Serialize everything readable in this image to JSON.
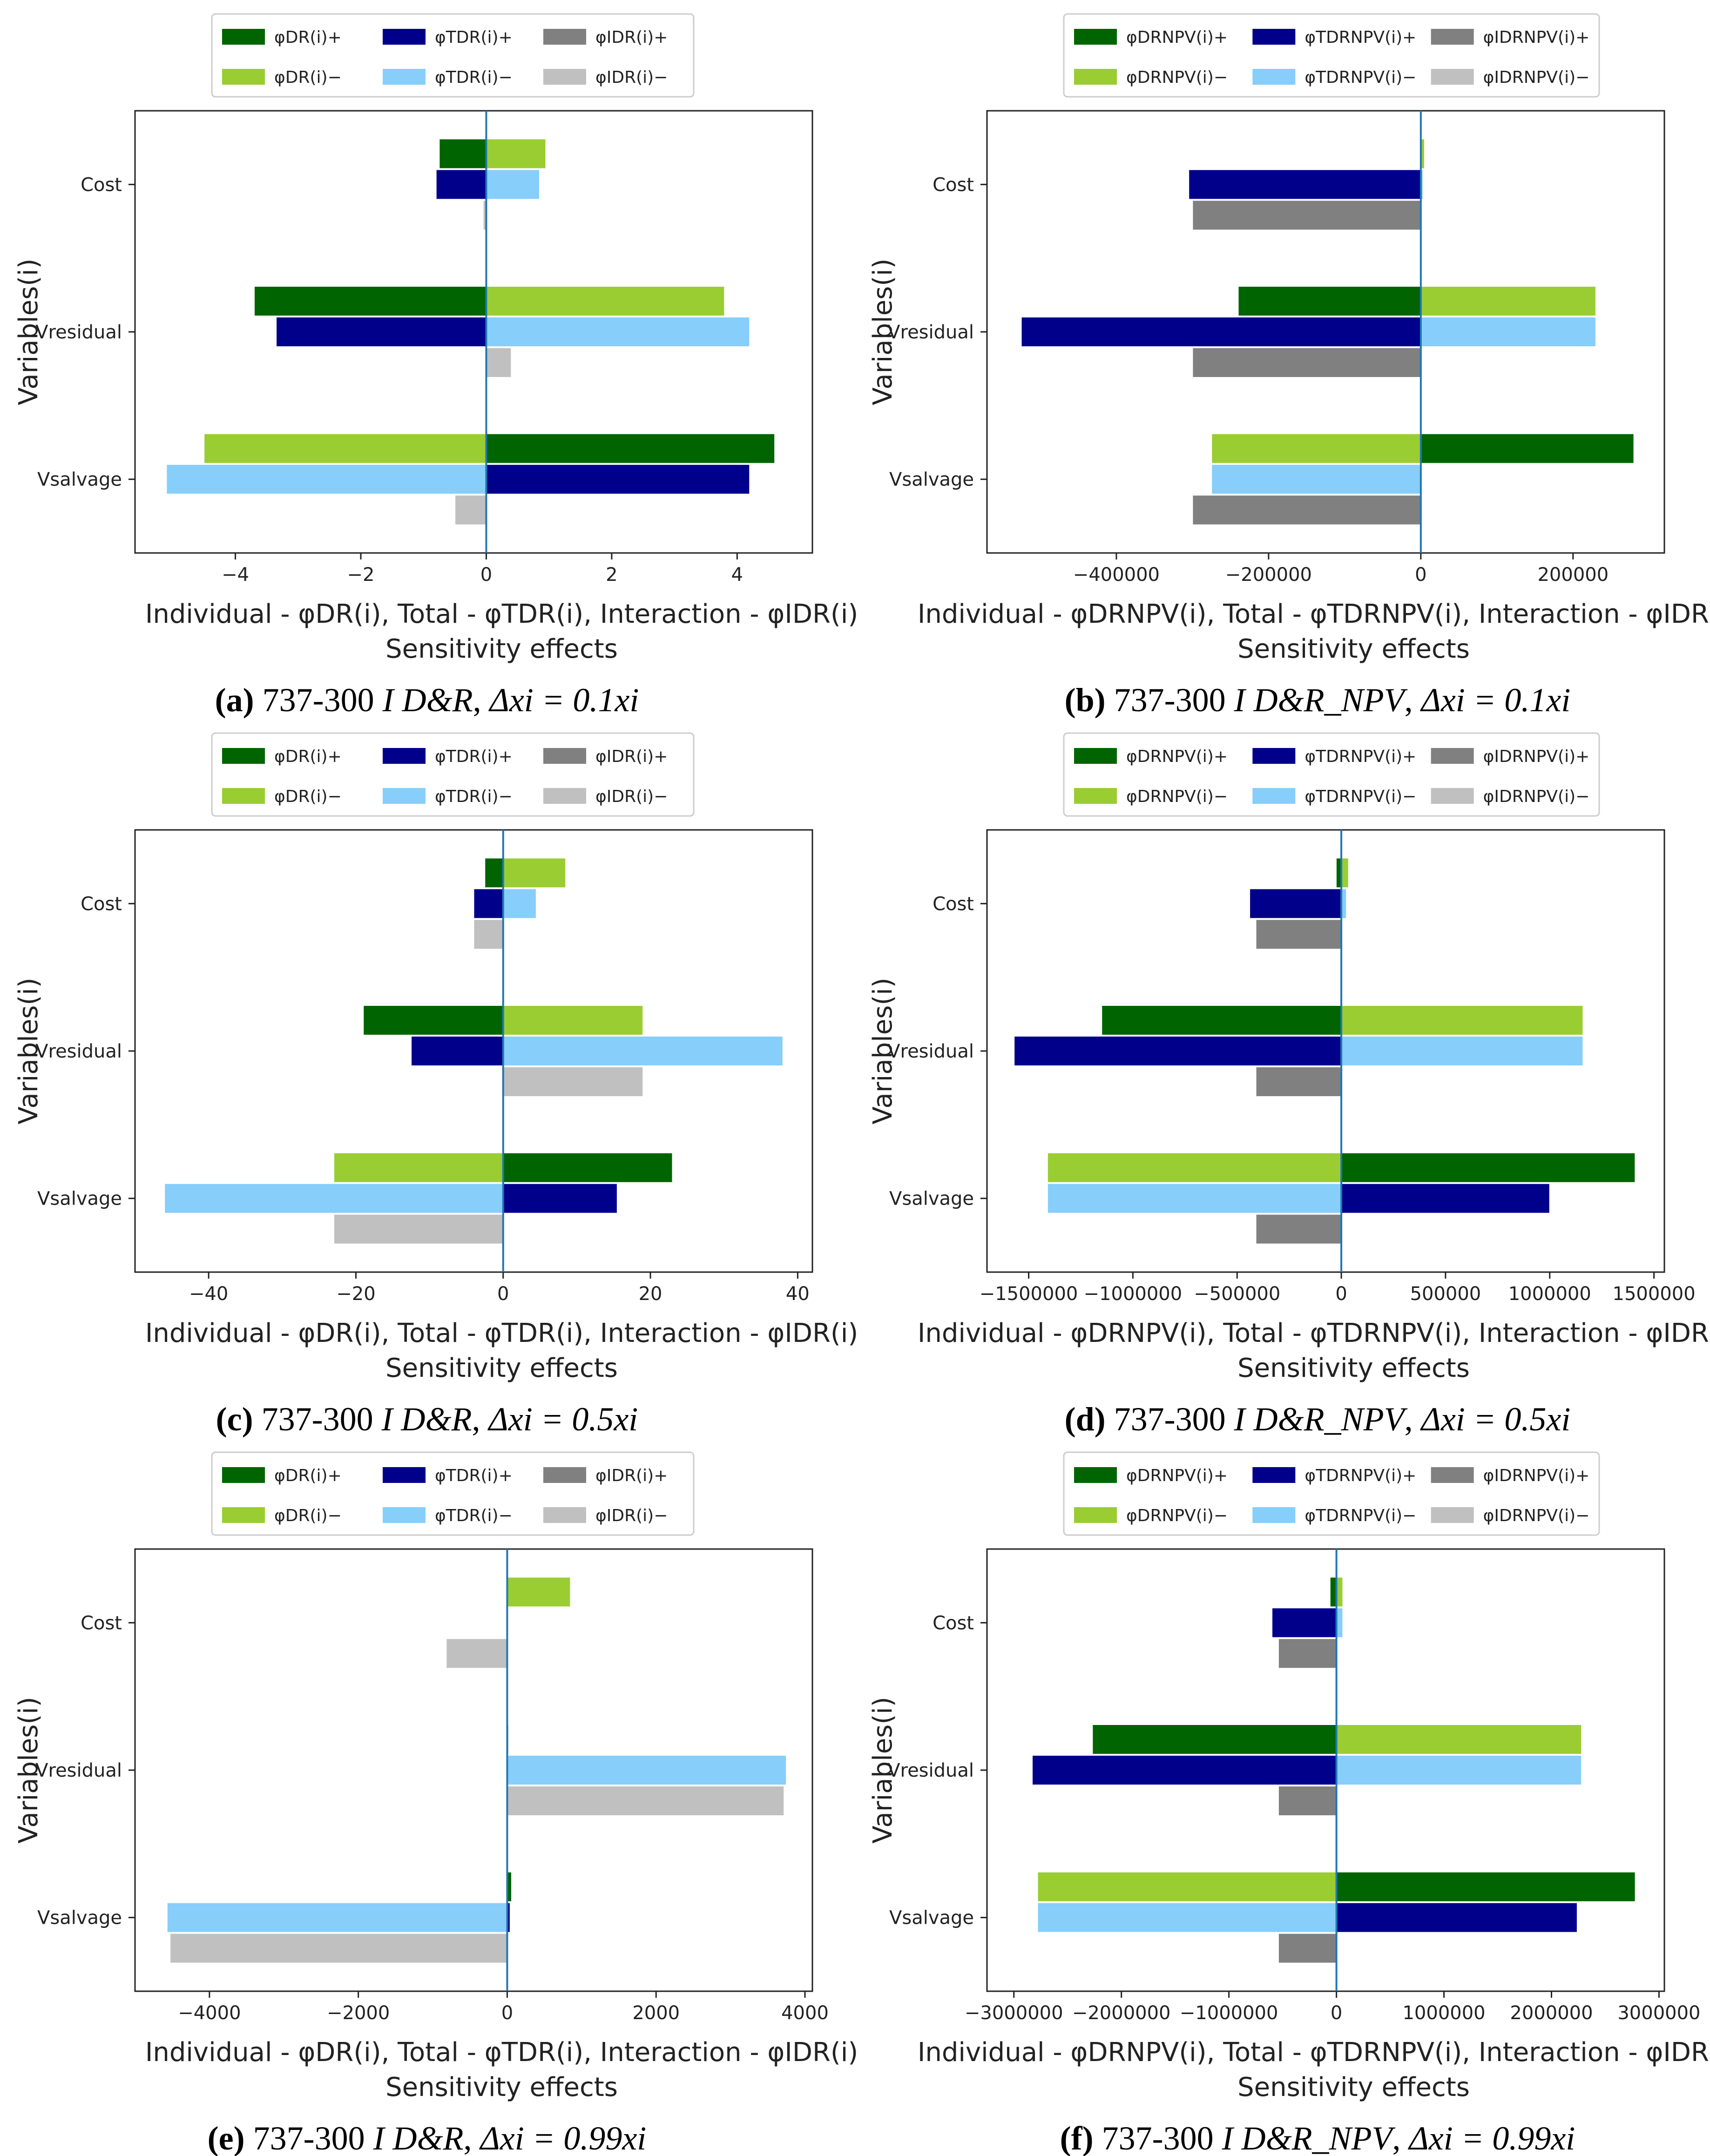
{
  "figure": {
    "palette": {
      "individual_plus": "#006400",
      "individual_minus": "#9ACD32",
      "total_plus": "#00008B",
      "total_minus": "#87CEFA",
      "interaction_plus": "#808080",
      "interaction_minus": "#C0C0C0",
      "zero_line": "#1f77b4"
    }
  },
  "chart_data": [
    {
      "id": "a",
      "type": "bar",
      "orientation": "horizontal",
      "caption": {
        "label": "(a)",
        "text": "737-300",
        "metric": "I D&R",
        "step": "Δxi = 0.1xi"
      },
      "legend_labels": [
        "φDR(i)+",
        "φDR(i)−",
        "φTDR(i)+",
        "φTDR(i)−",
        "φIDR(i)+",
        "φIDR(i)−"
      ],
      "categories": [
        "Cost",
        "Vresidual",
        "Vsalvage"
      ],
      "series": [
        {
          "name": "φDR(i)+",
          "values": [
            -0.75,
            -3.7,
            4.6
          ]
        },
        {
          "name": "φDR(i)−",
          "values": [
            0.95,
            3.8,
            -4.5
          ]
        },
        {
          "name": "φTDR(i)+",
          "values": [
            -0.8,
            -3.35,
            4.2
          ]
        },
        {
          "name": "φTDR(i)−",
          "values": [
            0.85,
            4.2,
            -5.1
          ]
        },
        {
          "name": "φIDR(i)+",
          "values": [
            0,
            0,
            0
          ]
        },
        {
          "name": "φIDR(i)−",
          "values": [
            -0.05,
            0.4,
            -0.5
          ]
        }
      ],
      "xlim": [
        -5.6,
        5.2
      ],
      "xticks": [
        -4,
        -2,
        0,
        2,
        4
      ],
      "xtick_labels": [
        "−4",
        "−2",
        "0",
        "2",
        "4"
      ],
      "xlabel": "Individual - φDR(i), Total - φTDR(i), Interaction - φIDR(i)",
      "xlabel2": "Sensitivity effects",
      "ylabel": "Variables(i)"
    },
    {
      "id": "b",
      "type": "bar",
      "orientation": "horizontal",
      "caption": {
        "label": "(b)",
        "text": "737-300",
        "metric": "I D&R_NPV",
        "step": "Δxi = 0.1xi"
      },
      "legend_labels": [
        "φDRNPV(i)+",
        "φDRNPV(i)−",
        "φTDRNPV(i)+",
        "φTDRNPV(i)−",
        "φIDRNPV(i)+",
        "φIDRNPV(i)−"
      ],
      "categories": [
        "Cost",
        "Vresidual",
        "Vsalvage"
      ],
      "series": [
        {
          "name": "φDRNPV(i)+",
          "values": [
            0,
            -240000,
            280000
          ]
        },
        {
          "name": "φDRNPV(i)−",
          "values": [
            5000,
            230000,
            -275000
          ]
        },
        {
          "name": "φTDRNPV(i)+",
          "values": [
            -305000,
            -525000,
            0
          ]
        },
        {
          "name": "φTDRNPV(i)−",
          "values": [
            3000,
            230000,
            -275000
          ]
        },
        {
          "name": "φIDRNPV(i)+",
          "values": [
            -300000,
            -300000,
            -300000
          ]
        },
        {
          "name": "φIDRNPV(i)−",
          "values": [
            0,
            0,
            0
          ]
        }
      ],
      "xlim": [
        -570000,
        320000
      ],
      "xticks": [
        -400000,
        -200000,
        0,
        200000
      ],
      "xtick_labels": [
        "−400000",
        "−200000",
        "0",
        "200000"
      ],
      "xlabel": "Individual - φDRNPV(i), Total - φTDRNPV(i), Interaction - φIDRNPV(i)",
      "xlabel2": "Sensitivity effects",
      "ylabel": "Variables(i)"
    },
    {
      "id": "c",
      "type": "bar",
      "orientation": "horizontal",
      "caption": {
        "label": "(c)",
        "text": "737-300",
        "metric": "I D&R",
        "step": "Δxi = 0.5xi"
      },
      "legend_labels": [
        "φDR(i)+",
        "φDR(i)−",
        "φTDR(i)+",
        "φTDR(i)−",
        "φIDR(i)+",
        "φIDR(i)−"
      ],
      "categories": [
        "Cost",
        "Vresidual",
        "Vsalvage"
      ],
      "series": [
        {
          "name": "φDR(i)+",
          "values": [
            -2.5,
            -19,
            23
          ]
        },
        {
          "name": "φDR(i)−",
          "values": [
            8.5,
            19,
            -23
          ]
        },
        {
          "name": "φTDR(i)+",
          "values": [
            -4,
            -12.5,
            15.5
          ]
        },
        {
          "name": "φTDR(i)−",
          "values": [
            4.5,
            38,
            -46
          ]
        },
        {
          "name": "φIDR(i)+",
          "values": [
            0,
            0,
            0
          ]
        },
        {
          "name": "φIDR(i)−",
          "values": [
            -4,
            19,
            -23
          ]
        }
      ],
      "xlim": [
        -50,
        42
      ],
      "xticks": [
        -40,
        -20,
        0,
        20,
        40
      ],
      "xtick_labels": [
        "−40",
        "−20",
        "0",
        "20",
        "40"
      ],
      "xlabel": "Individual - φDR(i), Total - φTDR(i), Interaction - φIDR(i)",
      "xlabel2": "Sensitivity effects",
      "ylabel": "Variables(i)"
    },
    {
      "id": "d",
      "type": "bar",
      "orientation": "horizontal",
      "caption": {
        "label": "(d)",
        "text": "737-300",
        "metric": "I D&R_NPV",
        "step": "Δxi = 0.5xi"
      },
      "legend_labels": [
        "φDRNPV(i)+",
        "φDRNPV(i)−",
        "φTDRNPV(i)+",
        "φTDRNPV(i)−",
        "φIDRNPV(i)+",
        "φIDRNPV(i)−"
      ],
      "categories": [
        "Cost",
        "Vresidual",
        "Vsalvage"
      ],
      "series": [
        {
          "name": "φDRNPV(i)+",
          "values": [
            -25000,
            -1150000,
            1410000
          ]
        },
        {
          "name": "φDRNPV(i)−",
          "values": [
            35000,
            1160000,
            -1410000
          ]
        },
        {
          "name": "φTDRNPV(i)+",
          "values": [
            -440000,
            -1570000,
            1000000
          ]
        },
        {
          "name": "φTDRNPV(i)−",
          "values": [
            25000,
            1160000,
            -1410000
          ]
        },
        {
          "name": "φIDRNPV(i)+",
          "values": [
            -410000,
            -410000,
            -410000
          ]
        },
        {
          "name": "φIDRNPV(i)−",
          "values": [
            0,
            0,
            0
          ]
        }
      ],
      "xlim": [
        -1700000,
        1550000
      ],
      "xticks": [
        -1500000,
        -1000000,
        -500000,
        0,
        500000,
        1000000,
        1500000
      ],
      "xtick_labels": [
        "−1500000",
        "−1000000",
        "−500000",
        "0",
        "500000",
        "1000000",
        "1500000"
      ],
      "xlabel": "Individual - φDRNPV(i), Total - φTDRNPV(i), Interaction - φIDRNPV(i)",
      "xlabel2": "Sensitivity effects",
      "ylabel": "Variables(i)"
    },
    {
      "id": "e",
      "type": "bar",
      "orientation": "horizontal",
      "caption": {
        "label": "(e)",
        "text": "737-300",
        "metric": "I D&R",
        "step": "Δxi = 0.99xi"
      },
      "legend_labels": [
        "φDR(i)+",
        "φDR(i)−",
        "φTDR(i)+",
        "φTDR(i)−",
        "φIDR(i)+",
        "φIDR(i)−"
      ],
      "categories": [
        "Cost",
        "Vresidual",
        "Vsalvage"
      ],
      "series": [
        {
          "name": "φDR(i)+",
          "values": [
            0,
            20,
            60
          ]
        },
        {
          "name": "φDR(i)−",
          "values": [
            850,
            0,
            0
          ]
        },
        {
          "name": "φTDR(i)+",
          "values": [
            0,
            0,
            40
          ]
        },
        {
          "name": "φTDR(i)−",
          "values": [
            0,
            3750,
            -4570
          ]
        },
        {
          "name": "φIDR(i)+",
          "values": [
            0,
            0,
            0
          ]
        },
        {
          "name": "φIDR(i)−",
          "values": [
            -820,
            3720,
            -4530
          ]
        }
      ],
      "xlim": [
        -5000,
        4100
      ],
      "xticks": [
        -4000,
        -2000,
        0,
        2000,
        4000
      ],
      "xtick_labels": [
        "−4000",
        "−2000",
        "0",
        "2000",
        "4000"
      ],
      "xlabel": "Individual - φDR(i), Total - φTDR(i), Interaction - φIDR(i)",
      "xlabel2": "Sensitivity effects",
      "ylabel": "Variables(i)"
    },
    {
      "id": "f",
      "type": "bar",
      "orientation": "horizontal",
      "caption": {
        "label": "(f)",
        "text": "737-300",
        "metric": "I D&R_NPV",
        "step": "Δxi = 0.99xi"
      },
      "legend_labels": [
        "φDRNPV(i)+",
        "φDRNPV(i)−",
        "φTDRNPV(i)+",
        "φTDRNPV(i)−",
        "φIDRNPV(i)+",
        "φIDRNPV(i)−"
      ],
      "categories": [
        "Cost",
        "Vresidual",
        "Vsalvage"
      ],
      "series": [
        {
          "name": "φDRNPV(i)+",
          "values": [
            -60000,
            -2270000,
            2780000
          ]
        },
        {
          "name": "φDRNPV(i)−",
          "values": [
            60000,
            2280000,
            -2780000
          ]
        },
        {
          "name": "φTDRNPV(i)+",
          "values": [
            -600000,
            -2830000,
            2240000
          ]
        },
        {
          "name": "φTDRNPV(i)−",
          "values": [
            60000,
            2280000,
            -2780000
          ]
        },
        {
          "name": "φIDRNPV(i)+",
          "values": [
            -540000,
            -540000,
            -540000
          ]
        },
        {
          "name": "φIDRNPV(i)−",
          "values": [
            0,
            0,
            0
          ]
        }
      ],
      "xlim": [
        -3250000,
        3050000
      ],
      "xticks": [
        -3000000,
        -2000000,
        -1000000,
        0,
        1000000,
        2000000,
        3000000
      ],
      "xtick_labels": [
        "−3000000",
        "−2000000",
        "−1000000",
        "0",
        "1000000",
        "2000000",
        "3000000"
      ],
      "xlabel": "Individual - φDRNPV(i), Total - φTDRNPV(i), Interaction - φIDRNPV(i)",
      "xlabel2": "Sensitivity effects",
      "ylabel": "Variables(i)"
    }
  ]
}
